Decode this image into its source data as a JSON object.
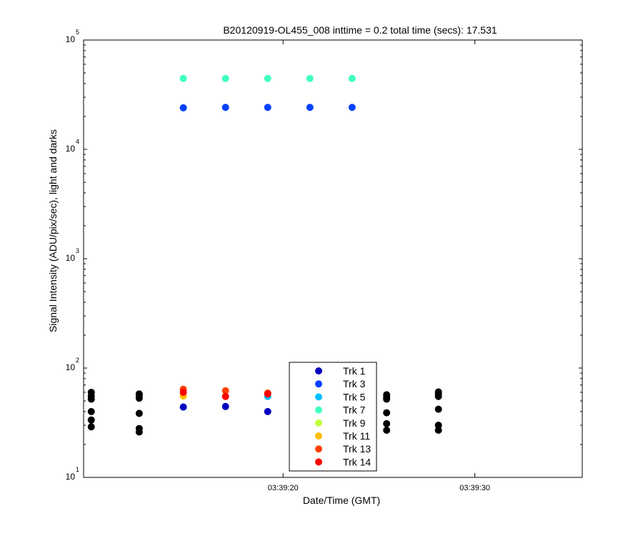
{
  "chart_data": {
    "type": "scatter",
    "title": "B20120919-OL455_008 inttime = 0.2 total time (secs): 17.531",
    "xlabel": "Date/Time (GMT)",
    "ylabel": "Signal Intensity (ADU/pix/sec), light and darks",
    "y_scale": "log",
    "ylim": [
      10,
      100000
    ],
    "xlim": [
      "03:39:09.6",
      "03:39:35.6"
    ],
    "x_ticks": [
      "03:39:20",
      "03:39:30"
    ],
    "y_ticks": [
      {
        "value": 10,
        "base": "10",
        "exp": "1"
      },
      {
        "value": 100,
        "base": "10",
        "exp": "2"
      },
      {
        "value": 1000,
        "base": "10",
        "exp": "3"
      },
      {
        "value": 10000,
        "base": "10",
        "exp": "4"
      },
      {
        "value": 100000,
        "base": "10",
        "exp": "5"
      }
    ],
    "grid": false,
    "legend_position": "bottom-center",
    "darks": {
      "color": "#000000",
      "points": [
        {
          "x": "03:39:10.0",
          "values": [
            29,
            33.5,
            40,
            52,
            55.5,
            60
          ]
        },
        {
          "x": "03:39:12.5",
          "values": [
            26,
            28,
            38.5,
            53,
            56,
            58
          ]
        },
        {
          "x": "03:39:25.4",
          "values": [
            27,
            31,
            39,
            52,
            54,
            57
          ]
        },
        {
          "x": "03:39:28.1",
          "values": [
            27,
            30,
            42,
            55,
            58,
            60.5
          ]
        }
      ]
    },
    "series": [
      {
        "name": "Trk 1",
        "color": "#0000bf",
        "points": [
          {
            "x": "03:39:14.8",
            "y": 44
          },
          {
            "x": "03:39:17.0",
            "y": 44.5
          },
          {
            "x": "03:39:19.2",
            "y": 40
          }
        ]
      },
      {
        "name": "Trk 3",
        "color": "#0040ff",
        "points": [
          {
            "x": "03:39:14.8",
            "y": 24000
          },
          {
            "x": "03:39:17.0",
            "y": 24200
          },
          {
            "x": "03:39:19.2",
            "y": 24200
          },
          {
            "x": "03:39:21.4",
            "y": 24200
          },
          {
            "x": "03:39:23.6",
            "y": 24200
          }
        ]
      },
      {
        "name": "Trk 5",
        "color": "#00bfff",
        "points": [
          {
            "x": "03:39:19.2",
            "y": 55
          }
        ]
      },
      {
        "name": "Trk 7",
        "color": "#40ffbf",
        "points": [
          {
            "x": "03:39:14.8",
            "y": 44500
          },
          {
            "x": "03:39:17.0",
            "y": 44500
          },
          {
            "x": "03:39:19.2",
            "y": 44500
          },
          {
            "x": "03:39:21.4",
            "y": 44500
          },
          {
            "x": "03:39:23.6",
            "y": 44500
          }
        ]
      },
      {
        "name": "Trk 9",
        "color": "#bfff40",
        "points": []
      },
      {
        "name": "Trk 11",
        "color": "#ffbf00",
        "points": [
          {
            "x": "03:39:14.8",
            "y": 55.5
          }
        ]
      },
      {
        "name": "Trk 13",
        "color": "#ff4000",
        "points": [
          {
            "x": "03:39:14.8",
            "y": 64
          },
          {
            "x": "03:39:17.0",
            "y": 62
          },
          {
            "x": "03:39:19.2",
            "y": 59
          }
        ]
      },
      {
        "name": "Trk 14",
        "color": "#ff0000",
        "points": [
          {
            "x": "03:39:14.8",
            "y": 60
          },
          {
            "x": "03:39:17.0",
            "y": 55
          },
          {
            "x": "03:39:19.2",
            "y": 58
          }
        ]
      }
    ]
  }
}
